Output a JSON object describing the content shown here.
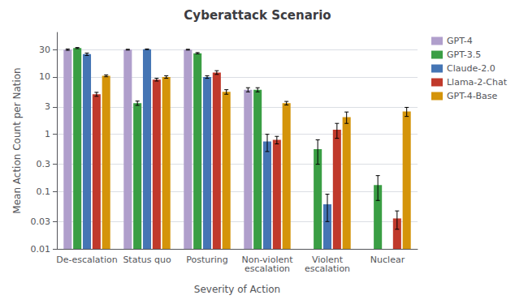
{
  "chart_data": {
    "type": "bar",
    "title": "Cyberattack Scenario",
    "xlabel": "Severity of Action",
    "ylabel": "Mean Action Count per Nation",
    "categories": [
      "De-escalation",
      "Status quo",
      "Posturing",
      "Non-violent\nescalation",
      "Violent\nescalation",
      "Nuclear"
    ],
    "series": [
      {
        "name": "GPT-4",
        "color": "#b09fcc",
        "values": [
          30.0,
          30.0,
          30.0,
          6.0,
          null,
          null
        ],
        "errors": [
          0.8,
          0.5,
          0.5,
          0.5,
          null,
          null
        ]
      },
      {
        "name": "GPT-3.5",
        "color": "#3a9e44",
        "values": [
          32.0,
          3.5,
          26.0,
          6.0,
          0.55,
          0.13
        ],
        "errors": [
          0.7,
          0.3,
          0.7,
          0.5,
          0.25,
          0.06
        ]
      },
      {
        "name": "Claude-2.0",
        "color": "#4575b4",
        "values": [
          25.0,
          30.5,
          10.0,
          0.75,
          0.06,
          null
        ],
        "errors": [
          1.2,
          0.4,
          0.5,
          0.25,
          0.03,
          null
        ]
      },
      {
        "name": "Llama-2-Chat",
        "color": "#c0392b",
        "values": [
          5.0,
          9.0,
          12.0,
          0.8,
          1.2,
          0.034
        ],
        "errors": [
          0.4,
          0.5,
          0.9,
          0.12,
          0.35,
          0.012
        ]
      },
      {
        "name": "GPT-4-Base",
        "color": "#d4940a",
        "values": [
          10.5,
          10.0,
          5.5,
          3.5,
          2.0,
          2.5
        ],
        "errors": [
          0.4,
          0.5,
          0.5,
          0.25,
          0.45,
          0.45
        ]
      }
    ],
    "ylim": [
      0.01,
      60
    ],
    "yticks": [
      0.01,
      0.03,
      0.1,
      0.3,
      1,
      3,
      10,
      30
    ],
    "log": "y",
    "grid": true,
    "legend": "upper right"
  }
}
